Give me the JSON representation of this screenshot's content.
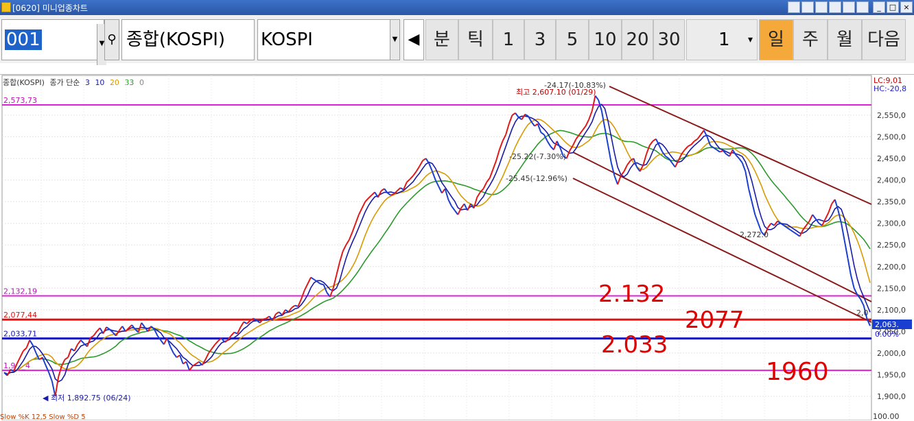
{
  "window": {
    "title": "[0620] 미니업종차트",
    "tool_icons": [
      "layout-icon",
      "print-icon",
      "pin-icon",
      "font-icon",
      "grid-icon",
      "help-icon"
    ],
    "controls": [
      "_",
      "□",
      "×"
    ]
  },
  "toolbar": {
    "code": "001",
    "name": "종합(KOSPI)",
    "index_select": "KOSPI",
    "left_arrow": "◀",
    "periods": [
      {
        "label": "분",
        "active": false
      },
      {
        "label": "틱",
        "active": false
      },
      {
        "label": "1",
        "active": false
      },
      {
        "label": "3",
        "active": false
      },
      {
        "label": "5",
        "active": false
      },
      {
        "label": "10",
        "active": false
      },
      {
        "label": "20",
        "active": false
      },
      {
        "label": "30",
        "active": false
      }
    ],
    "count_value": "1",
    "count_drop": "▾",
    "scale_buttons": [
      {
        "label": "일",
        "active": true
      },
      {
        "label": "주",
        "active": false
      },
      {
        "label": "월",
        "active": false
      },
      {
        "label": "다음",
        "active": false
      }
    ]
  },
  "legend": {
    "name": "종합(KOSPI)",
    "ma_label": "종가 단순",
    "ma_periods": [
      "3",
      "10",
      "20",
      "33",
      "0"
    ],
    "ma_colors": [
      "#1a1aa8",
      "#1a1aa8",
      "#d89a00",
      "#2a9a2a",
      "#888888"
    ]
  },
  "chart": {
    "top_right_labels": [
      "LC:9,01",
      "HC:-20,8"
    ],
    "max_annotation": "최고 2,607.10 (01/29)",
    "max_change": "-24.17(-10.83%)",
    "min_annotation": "최저 1,892.75 (06/24)",
    "channel_labels": [
      "-25.22(-7.30%)",
      "-25.45(-12.96%)"
    ],
    "mid_label": "2,272.0",
    "right_small_label": "2,0",
    "current_price": "2,063.",
    "current_pct": "0.00%",
    "y_ticks": [
      "2,550,0",
      "2,500,0",
      "2,450,0",
      "2,400,0",
      "2,350,0",
      "2,300,0",
      "2,250,0",
      "2,200,0",
      "2,150,0",
      "2,100,0",
      "2,050,0",
      "2,000,0",
      "1,950,0",
      "1,900,0"
    ],
    "hlines": [
      {
        "label": "2,573,73",
        "value": 2573.73,
        "color": "#e020d8"
      },
      {
        "label": "2,132,19",
        "value": 2132.19,
        "color": "#e020d8"
      },
      {
        "label": "2,077,44",
        "value": 2077.44,
        "color": "#e01010"
      },
      {
        "label": "2,033,71",
        "value": 2033.71,
        "color": "#1010c0"
      },
      {
        "label": "1,9_,_4",
        "value": 1960,
        "color": "#e020d8"
      }
    ],
    "handwritten": [
      "2.132",
      "2077",
      "2.033",
      "1960"
    ],
    "bottom_indicator": "Slow %K 12,5   Slow %D 5",
    "bottom_right_tick": "100.00"
  },
  "chart_data": {
    "type": "line",
    "title": "",
    "ylim": [
      1880,
      2620
    ],
    "series": [
      {
        "name": "종합(KOSPI)",
        "values": [
          1955,
          1948,
          1962,
          1958,
          1975,
          1990,
          2005,
          2012,
          2030,
          2018,
          2000,
          1985,
          1990,
          1972,
          1955,
          1935,
          1900,
          1945,
          1970,
          1985,
          1990,
          2010,
          2005,
          2020,
          2030,
          2022,
          2015,
          2035,
          2040,
          2050,
          2058,
          2045,
          2060,
          2055,
          2048,
          2040,
          2052,
          2062,
          2050,
          2058,
          2065,
          2055,
          2048,
          2070,
          2060,
          2050,
          2062,
          2055,
          2040,
          2030,
          2020,
          2035,
          2015,
          2000,
          1990,
          1995,
          1975,
          1980,
          1960,
          1970,
          1975,
          1980,
          1972,
          1985,
          2000,
          2010,
          2020,
          2028,
          2035,
          2025,
          2030,
          2040,
          2048,
          2045,
          2060,
          2072,
          2068,
          2075,
          2080,
          2076,
          2070,
          2078,
          2080,
          2085,
          2075,
          2090,
          2095,
          2088,
          2100,
          2095,
          2105,
          2110,
          2108,
          2125,
          2145,
          2160,
          2175,
          2170,
          2165,
          2160,
          2158,
          2140,
          2130,
          2150,
          2180,
          2210,
          2235,
          2250,
          2262,
          2280,
          2300,
          2320,
          2335,
          2350,
          2358,
          2365,
          2372,
          2360,
          2375,
          2380,
          2370,
          2365,
          2368,
          2375,
          2382,
          2378,
          2395,
          2402,
          2410,
          2420,
          2432,
          2445,
          2450,
          2438,
          2420,
          2400,
          2385,
          2370,
          2380,
          2355,
          2340,
          2330,
          2320,
          2335,
          2345,
          2330,
          2345,
          2335,
          2360,
          2372,
          2380,
          2395,
          2405,
          2425,
          2445,
          2470,
          2490,
          2505,
          2530,
          2550,
          2555,
          2545,
          2540,
          2552,
          2548,
          2535,
          2525,
          2530,
          2510,
          2505,
          2490,
          2478,
          2470,
          2490,
          2475,
          2455,
          2450,
          2468,
          2480,
          2495,
          2505,
          2515,
          2525,
          2540,
          2560,
          2595,
          2585,
          2560,
          2520,
          2480,
          2440,
          2410,
          2390,
          2410,
          2420,
          2435,
          2445,
          2450,
          2430,
          2420,
          2435,
          2460,
          2480,
          2490,
          2495,
          2480,
          2465,
          2455,
          2450,
          2440,
          2430,
          2445,
          2460,
          2470,
          2478,
          2482,
          2490,
          2495,
          2505,
          2515,
          2500,
          2480,
          2475,
          2470,
          2465,
          2468,
          2460,
          2455,
          2470,
          2458,
          2450,
          2440,
          2420,
          2380,
          2350,
          2320,
          2300,
          2280,
          2272,
          2290,
          2300,
          2295,
          2305,
          2300,
          2295,
          2290,
          2285,
          2280,
          2275,
          2270,
          2285,
          2295,
          2305,
          2320,
          2310,
          2300,
          2295,
          2310,
          2325,
          2345,
          2355,
          2330,
          2300,
          2260,
          2220,
          2180,
          2150,
          2135,
          2125,
          2110,
          2080,
          2063
        ]
      }
    ]
  }
}
